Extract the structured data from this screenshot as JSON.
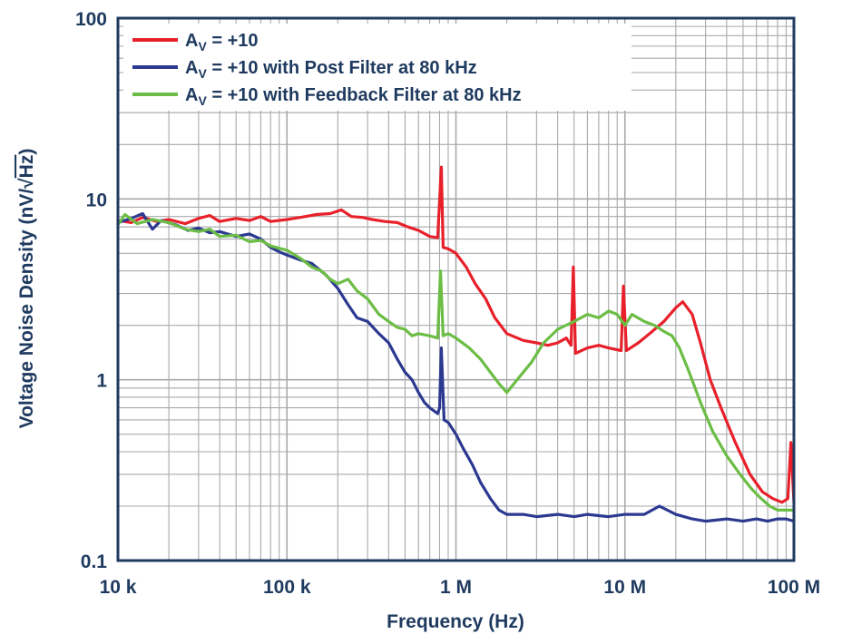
{
  "chart_data": {
    "type": "line",
    "x_scale": "log",
    "y_scale": "log",
    "xlim": [
      10000,
      100000000
    ],
    "ylim": [
      0.1,
      100
    ],
    "grid": true,
    "xlabel": "Frequency (Hz)",
    "ylabel": "Voltage Noise Density (nV/√Hz)",
    "ylabel_parts": {
      "main": "Voltage Noise Density (nV/",
      "radical": "√",
      "radicand": "Hz",
      "close": ")"
    },
    "x_ticks": [
      {
        "value": 10000,
        "label": "10 k"
      },
      {
        "value": 100000,
        "label": "100 k"
      },
      {
        "value": 1000000,
        "label": "1 M"
      },
      {
        "value": 10000000,
        "label": "10 M"
      },
      {
        "value": 100000000,
        "label": "100 M"
      }
    ],
    "y_ticks": [
      {
        "value": 0.1,
        "label": "0.1"
      },
      {
        "value": 1,
        "label": "1"
      },
      {
        "value": 10,
        "label": "10"
      },
      {
        "value": 100,
        "label": "100"
      }
    ],
    "legend_position": "top-left",
    "series": [
      {
        "name": "AV = +10",
        "name_parts": {
          "a": "A",
          "sub": "V",
          "rest": " = +10"
        },
        "color": "#e8202a",
        "points": [
          [
            10000,
            7.6
          ],
          [
            12000,
            7.4
          ],
          [
            14000,
            7.9
          ],
          [
            17000,
            7.5
          ],
          [
            20000,
            7.7
          ],
          [
            25000,
            7.3
          ],
          [
            30000,
            7.8
          ],
          [
            35000,
            8.1
          ],
          [
            40000,
            7.5
          ],
          [
            50000,
            7.8
          ],
          [
            60000,
            7.6
          ],
          [
            70000,
            8.0
          ],
          [
            80000,
            7.5
          ],
          [
            100000,
            7.7
          ],
          [
            120000,
            7.9
          ],
          [
            150000,
            8.2
          ],
          [
            180000,
            8.3
          ],
          [
            210000,
            8.7
          ],
          [
            240000,
            8.0
          ],
          [
            280000,
            7.9
          ],
          [
            320000,
            7.7
          ],
          [
            380000,
            7.5
          ],
          [
            450000,
            7.4
          ],
          [
            520000,
            7.0
          ],
          [
            600000,
            6.7
          ],
          [
            700000,
            6.2
          ],
          [
            780000,
            6.1
          ],
          [
            820000,
            15.0
          ],
          [
            840000,
            5.4
          ],
          [
            900000,
            5.3
          ],
          [
            1000000,
            5.0
          ],
          [
            1150000,
            4.2
          ],
          [
            1300000,
            3.4
          ],
          [
            1500000,
            2.8
          ],
          [
            1700000,
            2.2
          ],
          [
            2000000,
            1.8
          ],
          [
            2500000,
            1.65
          ],
          [
            3000000,
            1.6
          ],
          [
            3500000,
            1.55
          ],
          [
            4000000,
            1.6
          ],
          [
            4500000,
            1.7
          ],
          [
            4800000,
            1.55
          ],
          [
            4950000,
            4.2
          ],
          [
            5100000,
            1.4
          ],
          [
            6000000,
            1.5
          ],
          [
            7000000,
            1.55
          ],
          [
            8000000,
            1.5
          ],
          [
            9500000,
            1.45
          ],
          [
            9800000,
            3.3
          ],
          [
            10200000,
            1.45
          ],
          [
            12000000,
            1.6
          ],
          [
            14000000,
            1.8
          ],
          [
            17000000,
            2.1
          ],
          [
            20000000,
            2.5
          ],
          [
            22000000,
            2.7
          ],
          [
            25000000,
            2.3
          ],
          [
            28000000,
            1.6
          ],
          [
            32000000,
            1.0
          ],
          [
            37000000,
            0.7
          ],
          [
            45000000,
            0.45
          ],
          [
            55000000,
            0.3
          ],
          [
            65000000,
            0.24
          ],
          [
            75000000,
            0.22
          ],
          [
            85000000,
            0.21
          ],
          [
            92000000,
            0.22
          ],
          [
            96000000,
            0.45
          ],
          [
            100000000,
            0.21
          ]
        ]
      },
      {
        "name": "AV = +10 with Post Filter at 80 kHz",
        "name_parts": {
          "a": "A",
          "sub": "V",
          "rest": " = +10 with Post Filter at 80 kHz"
        },
        "color": "#2b3990",
        "points": [
          [
            10000,
            7.4
          ],
          [
            12000,
            7.8
          ],
          [
            14000,
            8.3
          ],
          [
            16000,
            6.8
          ],
          [
            18000,
            7.6
          ],
          [
            22000,
            7.2
          ],
          [
            26000,
            6.7
          ],
          [
            30000,
            6.9
          ],
          [
            35000,
            6.5
          ],
          [
            40000,
            6.6
          ],
          [
            50000,
            6.2
          ],
          [
            60000,
            6.4
          ],
          [
            70000,
            6.0
          ],
          [
            80000,
            5.4
          ],
          [
            90000,
            5.1
          ],
          [
            100000,
            4.9
          ],
          [
            120000,
            4.6
          ],
          [
            140000,
            4.4
          ],
          [
            170000,
            3.8
          ],
          [
            200000,
            3.2
          ],
          [
            230000,
            2.6
          ],
          [
            260000,
            2.2
          ],
          [
            300000,
            2.1
          ],
          [
            350000,
            1.8
          ],
          [
            400000,
            1.6
          ],
          [
            450000,
            1.3
          ],
          [
            500000,
            1.1
          ],
          [
            550000,
            1.0
          ],
          [
            600000,
            0.85
          ],
          [
            650000,
            0.75
          ],
          [
            700000,
            0.7
          ],
          [
            780000,
            0.65
          ],
          [
            800000,
            0.7
          ],
          [
            820000,
            1.5
          ],
          [
            850000,
            0.6
          ],
          [
            900000,
            0.58
          ],
          [
            1000000,
            0.5
          ],
          [
            1100000,
            0.42
          ],
          [
            1250000,
            0.34
          ],
          [
            1400000,
            0.27
          ],
          [
            1600000,
            0.22
          ],
          [
            1800000,
            0.19
          ],
          [
            2000000,
            0.18
          ],
          [
            2500000,
            0.18
          ],
          [
            3000000,
            0.175
          ],
          [
            4000000,
            0.18
          ],
          [
            5000000,
            0.175
          ],
          [
            6000000,
            0.18
          ],
          [
            8000000,
            0.175
          ],
          [
            10000000,
            0.18
          ],
          [
            13000000,
            0.18
          ],
          [
            16000000,
            0.2
          ],
          [
            20000000,
            0.18
          ],
          [
            25000000,
            0.17
          ],
          [
            30000000,
            0.165
          ],
          [
            40000000,
            0.17
          ],
          [
            50000000,
            0.165
          ],
          [
            60000000,
            0.17
          ],
          [
            70000000,
            0.165
          ],
          [
            80000000,
            0.17
          ],
          [
            90000000,
            0.17
          ],
          [
            100000000,
            0.165
          ]
        ]
      },
      {
        "name": "AV = +10 with Feedback Filter at 80 kHz",
        "name_parts": {
          "a": "A",
          "sub": "V",
          "rest": " = +10 with Feedback Filter at 80 kHz"
        },
        "color": "#6cbd45",
        "points": [
          [
            10000,
            7.2
          ],
          [
            11000,
            8.2
          ],
          [
            13000,
            7.3
          ],
          [
            16000,
            7.7
          ],
          [
            20000,
            7.4
          ],
          [
            25000,
            6.8
          ],
          [
            30000,
            6.6
          ],
          [
            35000,
            6.8
          ],
          [
            40000,
            6.2
          ],
          [
            50000,
            6.3
          ],
          [
            60000,
            5.8
          ],
          [
            70000,
            5.9
          ],
          [
            80000,
            5.5
          ],
          [
            100000,
            5.2
          ],
          [
            120000,
            4.7
          ],
          [
            140000,
            4.2
          ],
          [
            160000,
            4.0
          ],
          [
            180000,
            3.6
          ],
          [
            200000,
            3.4
          ],
          [
            230000,
            3.6
          ],
          [
            260000,
            3.1
          ],
          [
            300000,
            2.8
          ],
          [
            350000,
            2.3
          ],
          [
            400000,
            2.1
          ],
          [
            450000,
            1.95
          ],
          [
            500000,
            1.9
          ],
          [
            550000,
            1.75
          ],
          [
            600000,
            1.8
          ],
          [
            700000,
            1.75
          ],
          [
            780000,
            1.7
          ],
          [
            810000,
            4.0
          ],
          [
            840000,
            1.75
          ],
          [
            900000,
            1.8
          ],
          [
            1000000,
            1.7
          ],
          [
            1200000,
            1.5
          ],
          [
            1400000,
            1.3
          ],
          [
            1600000,
            1.1
          ],
          [
            1800000,
            0.95
          ],
          [
            2000000,
            0.85
          ],
          [
            2300000,
            1.0
          ],
          [
            2800000,
            1.25
          ],
          [
            3300000,
            1.6
          ],
          [
            4000000,
            1.9
          ],
          [
            5000000,
            2.1
          ],
          [
            6000000,
            2.3
          ],
          [
            7000000,
            2.2
          ],
          [
            8000000,
            2.4
          ],
          [
            9000000,
            2.3
          ],
          [
            10000000,
            2.0
          ],
          [
            11000000,
            2.3
          ],
          [
            13000000,
            2.1
          ],
          [
            15000000,
            2.0
          ],
          [
            17000000,
            1.85
          ],
          [
            19000000,
            1.75
          ],
          [
            21000000,
            1.5
          ],
          [
            24000000,
            1.1
          ],
          [
            28000000,
            0.75
          ],
          [
            33000000,
            0.52
          ],
          [
            40000000,
            0.38
          ],
          [
            48000000,
            0.3
          ],
          [
            56000000,
            0.25
          ],
          [
            64000000,
            0.22
          ],
          [
            72000000,
            0.2
          ],
          [
            80000000,
            0.19
          ],
          [
            90000000,
            0.19
          ],
          [
            100000000,
            0.19
          ]
        ]
      }
    ]
  }
}
